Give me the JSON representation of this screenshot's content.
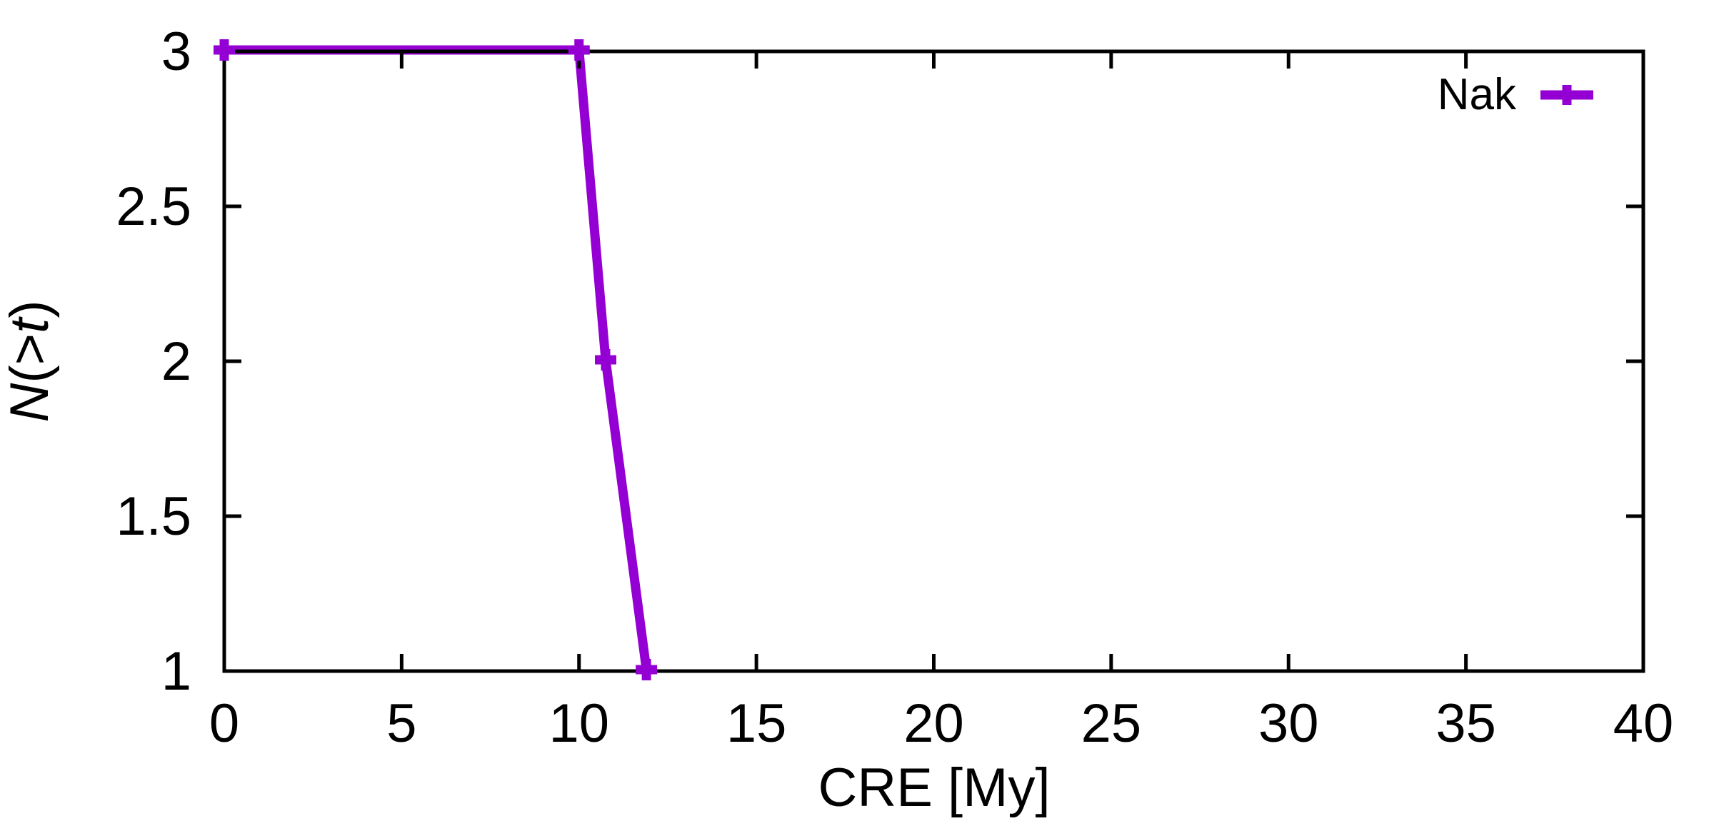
{
  "figure": {
    "background": "#ffffff",
    "axis_color": "#000000"
  },
  "labels": {
    "xlabel": "CRE [My]",
    "ylabel_n": "N",
    "ylabel_open": "(>",
    "ylabel_t": "t",
    "ylabel_close": ")"
  },
  "legend": {
    "label": "Nak",
    "marker": "plus-icon",
    "color": "#9400d3",
    "position": "top-right"
  },
  "chart_data": {
    "type": "line",
    "title": "",
    "xlabel": "CRE [My]",
    "ylabel": "N(>t)",
    "xlim": [
      0,
      40
    ],
    "ylim": [
      1,
      3
    ],
    "grid": false,
    "x_ticks": {
      "values": [
        0,
        5,
        10,
        15,
        20,
        25,
        30,
        35,
        40
      ],
      "labels": [
        "0",
        "5",
        "10",
        "15",
        "20",
        "25",
        "30",
        "35",
        "40"
      ]
    },
    "y_ticks": {
      "values": [
        1,
        1.5,
        2,
        2.5,
        3
      ],
      "labels": [
        "1",
        "1.5",
        "2",
        "2.5",
        "3"
      ]
    },
    "series": [
      {
        "name": "Nak",
        "color": "#9400d3",
        "marker": "plus",
        "points": [
          [
            0,
            3
          ],
          [
            10,
            3
          ],
          [
            10.75,
            2
          ],
          [
            11.9,
            1
          ]
        ]
      }
    ]
  }
}
